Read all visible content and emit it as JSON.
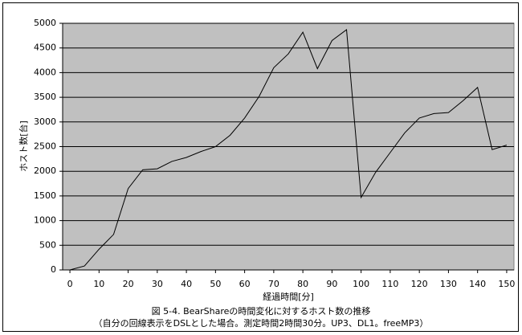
{
  "chart_data": {
    "type": "line",
    "title": "図 5-4. BearShareの時間変化に対するホスト数の推移",
    "subtitle": "（自分の回線表示をDSLとした場合。測定時間2時間30分。UP3、DL1。freeMP3）",
    "x_label": "経過時間[分]",
    "y_label": "ホスト数[台]",
    "x": [
      0,
      5,
      10,
      15,
      20,
      25,
      30,
      35,
      40,
      45,
      50,
      55,
      60,
      65,
      70,
      75,
      80,
      85,
      90,
      95,
      100,
      105,
      110,
      115,
      120,
      125,
      130,
      135,
      140,
      145,
      150
    ],
    "series": [
      {
        "color": "#000000",
        "values": [
          0,
          80,
          420,
          720,
          1650,
          2030,
          2050,
          2200,
          2280,
          2400,
          2500,
          2730,
          3080,
          3520,
          4100,
          4380,
          4820,
          4080,
          4650,
          4870,
          1470,
          1980,
          2380,
          2780,
          3080,
          3170,
          3190,
          3430,
          3700,
          2440,
          2530
        ]
      }
    ],
    "xlim": [
      -2.5,
      152.5
    ],
    "xticks": [
      0,
      10,
      20,
      30,
      40,
      50,
      60,
      70,
      80,
      90,
      100,
      110,
      120,
      130,
      140,
      150
    ],
    "ylim": [
      0,
      5000
    ],
    "yticks": [
      0,
      500,
      1000,
      1500,
      2000,
      2500,
      3000,
      3500,
      4000,
      4500,
      5000
    ],
    "grid": true,
    "plot_background": "#c0c0c0"
  }
}
